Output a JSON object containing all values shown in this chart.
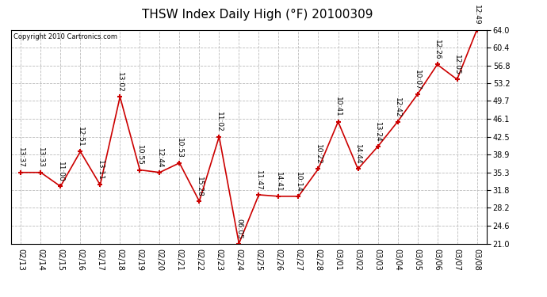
{
  "title": "THSW Index Daily High (°F) 20100309",
  "copyright": "Copyright 2010 Cartronics.com",
  "dates": [
    "02/13",
    "02/14",
    "02/15",
    "02/16",
    "02/17",
    "02/18",
    "02/19",
    "02/20",
    "02/21",
    "02/22",
    "02/23",
    "02/24",
    "02/25",
    "02/26",
    "02/27",
    "02/28",
    "03/01",
    "03/02",
    "03/03",
    "03/04",
    "03/05",
    "03/06",
    "03/07",
    "03/08"
  ],
  "values": [
    35.3,
    35.3,
    32.5,
    39.5,
    32.8,
    50.5,
    35.8,
    35.3,
    37.2,
    29.5,
    42.5,
    21.0,
    30.8,
    30.5,
    30.5,
    36.0,
    45.5,
    36.0,
    40.5,
    45.5,
    51.0,
    57.0,
    54.0,
    64.0
  ],
  "time_labels": [
    "13:37",
    "13:33",
    "11:00",
    "12:51",
    "13:11",
    "13:02",
    "10:55",
    "12:44",
    "10:53",
    "15:28",
    "11:02",
    "06:05",
    "11:47",
    "14:41",
    "10:14",
    "10:22",
    "10:41",
    "14:44",
    "13:24",
    "12:42",
    "10:07",
    "12:26",
    "12:05",
    "12:49"
  ],
  "ylim": [
    21.0,
    64.0
  ],
  "yticks": [
    21.0,
    24.6,
    28.2,
    31.8,
    35.3,
    38.9,
    42.5,
    46.1,
    49.7,
    53.2,
    56.8,
    60.4,
    64.0
  ],
  "line_color": "#cc0000",
  "marker_color": "#cc0000",
  "bg_color": "#ffffff",
  "grid_color": "#bbbbbb",
  "title_fontsize": 11,
  "label_fontsize": 6.5,
  "tick_fontsize": 7
}
